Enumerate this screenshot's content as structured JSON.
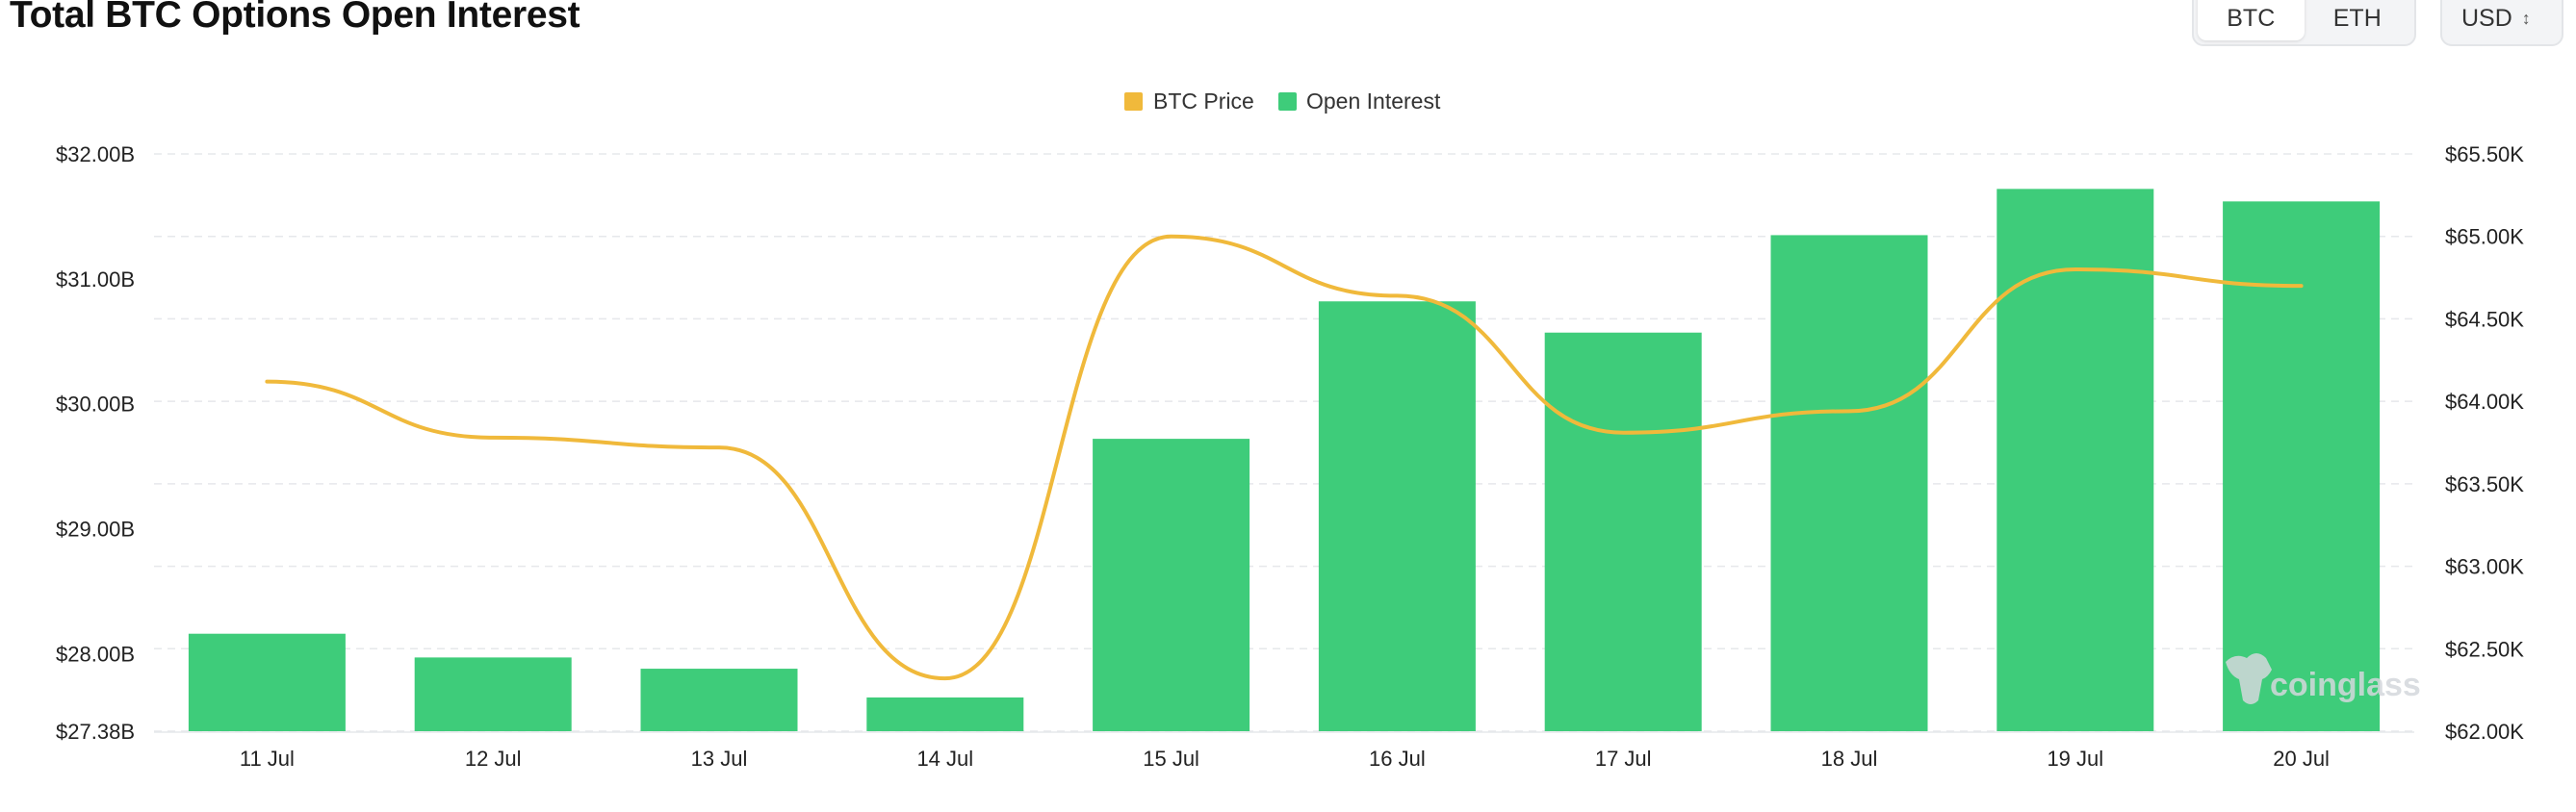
{
  "header": {
    "title": "Total BTC Options Open Interest",
    "asset_tabs": [
      "BTC",
      "ETH"
    ],
    "active_asset": "BTC",
    "currency": "USD"
  },
  "chart_data": {
    "type": "bar",
    "categories": [
      "11 Jul",
      "12 Jul",
      "13 Jul",
      "14 Jul",
      "15 Jul",
      "16 Jul",
      "17 Jul",
      "18 Jul",
      "19 Jul",
      "20 Jul"
    ],
    "series": [
      {
        "name": "Open Interest",
        "type": "bar",
        "axis": "left",
        "color": "#3ecc7a",
        "values_billion_usd": [
          28.16,
          27.97,
          27.88,
          27.65,
          29.72,
          30.82,
          30.57,
          31.35,
          31.72,
          31.62
        ]
      },
      {
        "name": "BTC Price",
        "type": "line",
        "axis": "right",
        "color": "#f0b93b",
        "values_thousand_usd": [
          64.12,
          63.78,
          63.72,
          62.32,
          65.0,
          64.64,
          63.81,
          63.94,
          64.8,
          64.7
        ]
      }
    ],
    "left_axis": {
      "ticks": [
        "$32.00B",
        "$31.00B",
        "$30.00B",
        "$29.00B",
        "$28.00B",
        "$27.38B"
      ],
      "ylim_billion": [
        27.38,
        32.0
      ]
    },
    "right_axis": {
      "ticks": [
        "$65.50K",
        "$65.00K",
        "$64.50K",
        "$64.00K",
        "$63.50K",
        "$63.00K",
        "$62.50K",
        "$62.00K"
      ],
      "ylim_thousand": [
        62.0,
        65.5
      ]
    },
    "grid": true,
    "legend": "top-center",
    "legend_items": [
      "BTC Price",
      "Open Interest"
    ]
  },
  "watermark": "coinglass"
}
